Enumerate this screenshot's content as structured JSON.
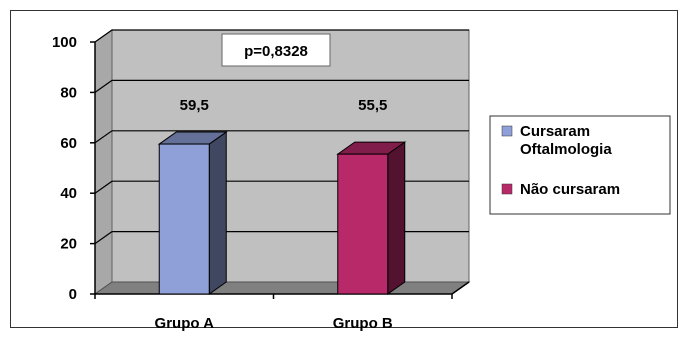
{
  "chart_data": {
    "type": "bar",
    "categories": [
      "Grupo A",
      "Grupo B"
    ],
    "series": [
      {
        "name": "Cursaram Oftalmologia",
        "values": [
          59.5,
          null
        ],
        "color": "#8FA0D8"
      },
      {
        "name": "Não cursaram",
        "values": [
          null,
          55.5
        ],
        "color": "#B8296A"
      }
    ],
    "data_labels": [
      "59,5",
      "55,5"
    ],
    "y_ticks": [
      "0",
      "20",
      "40",
      "60",
      "80",
      "100"
    ],
    "ylim": [
      0,
      100
    ],
    "grid": true,
    "legend_position": "right",
    "legend": [
      {
        "lines": [
          "Cursaram",
          "Oftalmologia"
        ],
        "color": "#8FA0D8"
      },
      {
        "lines": [
          "Não  cursaram"
        ],
        "color": "#B8296A"
      }
    ],
    "annotation": "p=0,8328",
    "wall_color": "#C0C0C0",
    "floor_color": "#808080"
  }
}
